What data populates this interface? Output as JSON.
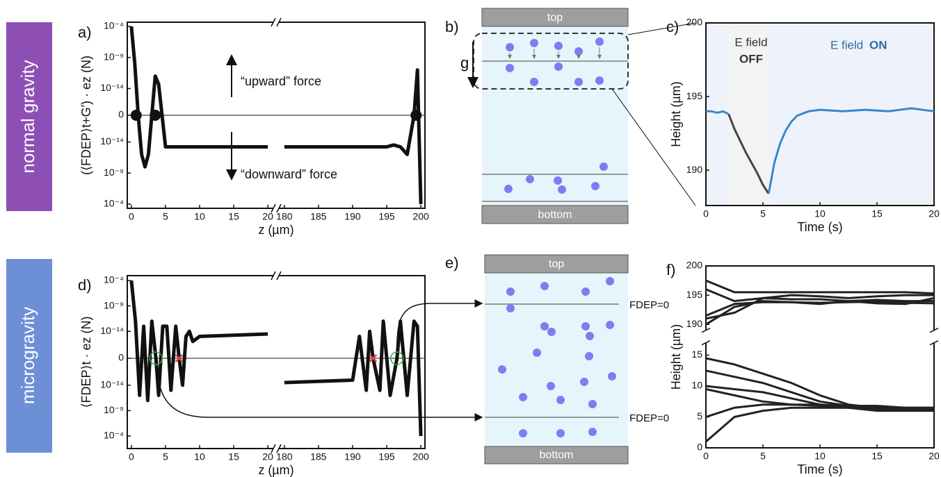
{
  "row_labels": [
    "normal gravity",
    "microgravity"
  ],
  "panel_labels": [
    "a)",
    "b)",
    "c)",
    "d)",
    "e)",
    "f)"
  ],
  "diagrams": [
    {
      "top": "top",
      "bottom": "bottom",
      "gravity": "g"
    },
    {
      "top": "top",
      "bottom": "bottom",
      "plane_labels": [
        "FDEP=0",
        "FDEP=0"
      ]
    }
  ],
  "chart_data": [
    {
      "type": "symlog_line",
      "ylabel": "(⟨FDEP⟩t+G′) · ez (N)",
      "xlabel": "z (µm)",
      "xlim": [
        -0.6,
        200.6
      ],
      "x_break": [
        20.8,
        179.2
      ],
      "xticks": [
        0,
        5,
        10,
        15,
        20,
        180,
        185,
        190,
        195,
        200
      ],
      "ylim": [
        -0.0001,
        0.0001
      ],
      "yticks": [
        {
          "value": 0.0001,
          "label": "10⁻⁴"
        },
        {
          "value": 1e-09,
          "label": "10⁻⁹"
        },
        {
          "value": 1e-14,
          "label": "10⁻¹⁴"
        },
        0,
        {
          "value": -1e-14,
          "label": "10⁻¹⁴"
        },
        {
          "value": -1e-09,
          "label": "10⁻⁹"
        },
        {
          "value": -0.0001,
          "label": "10⁻⁴"
        }
      ],
      "annotations": [
        "“upward” force",
        "“downward” force"
      ],
      "color": "#111111",
      "x": [
        0,
        0.5,
        1,
        1.5,
        2,
        2.5,
        3,
        3.5,
        4,
        5,
        20,
        null,
        180,
        195,
        196,
        197,
        198,
        199,
        199.5,
        200
      ],
      "values": [
        0.0001,
        1e-10,
        0,
        -1e-12,
        -1e-10,
        -1e-12,
        0,
        1e-12,
        5e-14,
        -6e-14,
        -6e-14,
        null,
        -6e-14,
        -6e-14,
        -3e-14,
        -6e-14,
        -1e-12,
        0,
        1e-11,
        -0.0001
      ],
      "equilibria": [
        0.7,
        3.5,
        199.3
      ]
    },
    {
      "type": "line",
      "xlabel": "Time (s)",
      "ylabel": "Height (µm)",
      "xlim": [
        0,
        20
      ],
      "xticks": [
        0,
        5,
        10,
        15,
        20
      ],
      "ylim": [
        187.6,
        200
      ],
      "yticks": [
        190,
        195,
        200
      ],
      "regions": [
        {
          "from": 0,
          "to": 2,
          "color": "#eef3fb"
        },
        {
          "from": 2,
          "to": 5.6,
          "color": "#f3f3f3"
        },
        {
          "from": 5.6,
          "to": 20,
          "color": "#eef3fb"
        }
      ],
      "annotations": [
        "E field",
        "OFF",
        "E field",
        "ON"
      ],
      "series": [
        {
          "color": "#3a86c8",
          "x": [
            0,
            0.5,
            1,
            1.5,
            2
          ],
          "values": [
            194,
            194,
            193.9,
            194,
            193.8
          ]
        },
        {
          "color": "#444444",
          "x": [
            2,
            2.5,
            3,
            3.5,
            4,
            4.5,
            5,
            5.5
          ],
          "values": [
            193.8,
            192.8,
            192,
            191.2,
            190.5,
            189.8,
            189,
            188.4
          ]
        },
        {
          "color": "#3a86c8",
          "x": [
            5.5,
            6,
            6.5,
            7,
            7.5,
            8,
            9,
            10,
            12,
            14,
            16,
            18,
            20
          ],
          "values": [
            188.4,
            190.5,
            191.8,
            192.7,
            193.3,
            193.7,
            194,
            194.1,
            194,
            194.1,
            194,
            194.2,
            194
          ]
        }
      ]
    },
    {
      "type": "symlog_line",
      "ylabel": "⟨FDEP⟩t · ez (N)",
      "xlabel": "z (µm)",
      "xlim": [
        -0.6,
        200.6
      ],
      "x_break": [
        20.8,
        179.2
      ],
      "xticks": [
        0,
        5,
        10,
        15,
        20,
        180,
        185,
        190,
        195,
        200
      ],
      "ylim": [
        -0.0001,
        0.0001
      ],
      "yticks": [
        {
          "value": 0.0001,
          "label": "10⁻⁴"
        },
        {
          "value": 1e-09,
          "label": "10⁻⁹"
        },
        {
          "value": 1e-14,
          "label": "10⁻¹⁴"
        },
        0,
        {
          "value": -1e-14,
          "label": "10⁻¹⁴"
        },
        {
          "value": -1e-09,
          "label": "10⁻⁹"
        },
        {
          "value": -0.0001,
          "label": "10⁻⁴"
        }
      ],
      "color": "#111111",
      "x": [
        0,
        0.6,
        1.2,
        1.8,
        2.4,
        3,
        3.6,
        4,
        4.6,
        5.2,
        5.8,
        6.5,
        7,
        7.5,
        8,
        8.5,
        9,
        10,
        20,
        null,
        180,
        190,
        191,
        192,
        192.5,
        193,
        194,
        194.5,
        195.5,
        196.5,
        197,
        198,
        199,
        199.5,
        200
      ],
      "values": [
        0.0001,
        1e-12,
        -1e-12,
        1e-13,
        -1e-11,
        1e-12,
        0,
        -1e-12,
        1e-13,
        1e-13,
        -1e-13,
        1e-13,
        0,
        -1e-14,
        1e-15,
        1e-14,
        1e-16,
        1e-15,
        3e-15,
        null,
        -3e-15,
        -1e-15,
        1e-15,
        -1e-13,
        1e-14,
        0,
        -1e-13,
        1e-12,
        -1e-12,
        0,
        1e-12,
        -1e-12,
        1e-12,
        1e-13,
        -0.0001
      ],
      "stable": [
        3.6,
        196.5
      ],
      "unstable": [
        7,
        193
      ]
    },
    {
      "type": "line",
      "xlabel": "Time (s)",
      "ylabel": "Height (µm)",
      "xlim": [
        0,
        20
      ],
      "xticks": [
        0,
        5,
        10,
        15,
        20
      ],
      "ylim": [
        0,
        200
      ],
      "y_break": [
        17,
        189
      ],
      "yticks": [
        0,
        5,
        10,
        15,
        190,
        195,
        200
      ],
      "x": [
        0,
        2.5,
        5,
        7.5,
        10,
        12.5,
        15,
        17.5,
        20
      ],
      "series": [
        {
          "color": "#222222",
          "values": [
            14.5,
            13.5,
            12,
            10.5,
            8.5,
            7,
            6.5,
            6.2,
            6
          ]
        },
        {
          "color": "#222222",
          "values": [
            12.5,
            11.5,
            10.5,
            9,
            7.5,
            6.8,
            6.5,
            6.3,
            6.2
          ]
        },
        {
          "color": "#222222",
          "values": [
            10,
            9.5,
            9,
            8,
            7,
            6.5,
            6,
            6,
            6
          ]
        },
        {
          "color": "#222222",
          "values": [
            9.5,
            8.5,
            7.5,
            7,
            6.8,
            6.5,
            6.5,
            6.5,
            6.5
          ]
        },
        {
          "color": "#222222",
          "values": [
            5,
            6.5,
            7,
            7,
            7,
            6.8,
            6.8,
            6.5,
            6.5
          ]
        },
        {
          "color": "#222222",
          "values": [
            1,
            5,
            6,
            6.5,
            6.5,
            6.5,
            6.2,
            6.2,
            6
          ]
        },
        {
          "color": "#222222",
          "values": [
            197.5,
            195.5,
            195.5,
            195.5,
            195.5,
            195.5,
            195.5,
            195.5,
            195.3
          ]
        },
        {
          "color": "#222222",
          "values": [
            196,
            194,
            194.5,
            194.3,
            194.3,
            194,
            194.2,
            194,
            194
          ]
        },
        {
          "color": "#222222",
          "values": [
            191.5,
            193.5,
            193.8,
            193.8,
            193.7,
            193.8,
            193.9,
            193.7,
            193.6
          ]
        },
        {
          "color": "#222222",
          "values": [
            190,
            193,
            194,
            193.8,
            193.5,
            194,
            193.6,
            193.5,
            194.5
          ]
        },
        {
          "color": "#222222",
          "values": [
            191,
            192,
            194.5,
            195,
            194.8,
            194.5,
            194.8,
            195,
            195
          ]
        }
      ]
    }
  ]
}
